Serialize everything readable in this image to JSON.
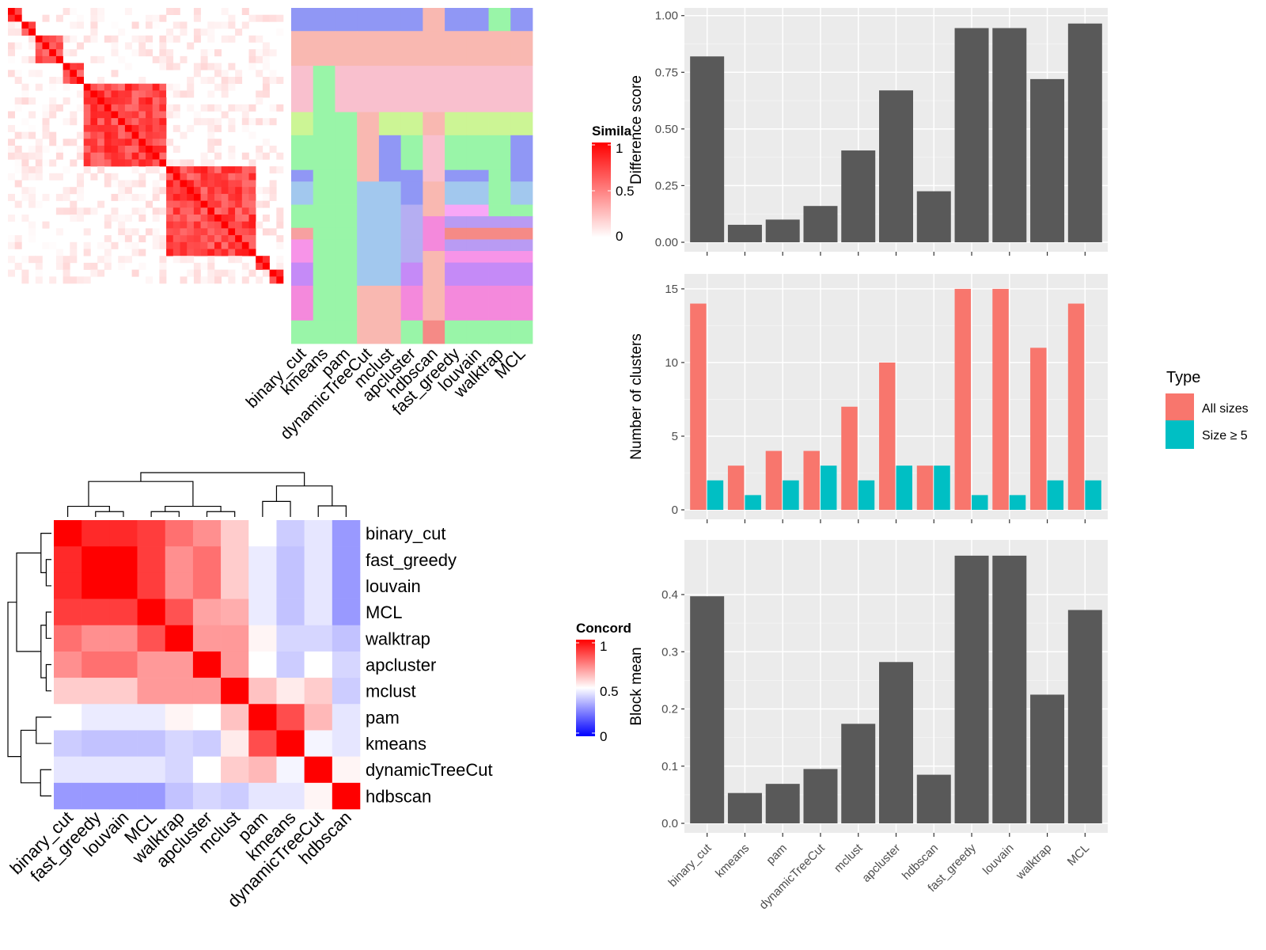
{
  "methods": [
    "binary_cut",
    "kmeans",
    "pam",
    "dynamicTreeCut",
    "mclust",
    "apcluster",
    "hdbscan",
    "fast_greedy",
    "louvain",
    "walktrap",
    "MCL"
  ],
  "similarity_legend": {
    "title": "Simila",
    "ticks": [
      "1",
      "0.5",
      "0"
    ],
    "colors": [
      "#ffffff",
      "#ff0000"
    ]
  },
  "concordance_legend": {
    "title": "Concord",
    "ticks": [
      "1",
      "0.5",
      "0"
    ],
    "colors": [
      "#0000ff",
      "#ffffff",
      "#ff0000"
    ]
  },
  "similarity_matrix": {
    "n": 40,
    "blocks": [
      [
        0,
        2
      ],
      [
        2,
        4
      ],
      [
        4,
        8
      ],
      [
        8,
        11
      ],
      [
        11,
        23
      ],
      [
        23,
        36
      ],
      [
        36,
        38
      ],
      [
        38,
        40
      ]
    ]
  },
  "cluster_panel": {
    "columns": [
      "binary_cut",
      "kmeans",
      "pam",
      "dynamicTreeCut",
      "mclust",
      "apcluster",
      "hdbscan",
      "fast_greedy",
      "louvain",
      "walktrap",
      "MCL"
    ],
    "palette": [
      "#9097F5",
      "#F9B8B1",
      "#F9C0CE",
      "#CCF595",
      "#99F5A8",
      "#A2C8EE",
      "#B5AEF2",
      "#F8A7F7",
      "#F58A86",
      "#C58AF7",
      "#F489DC",
      "#F794E8",
      "#B99BF3",
      "#F7A0A0",
      "#A7E89E"
    ],
    "rows": [
      {
        "h": 2,
        "c": [
          0,
          0,
          0,
          0,
          0,
          0,
          1,
          0,
          0,
          4,
          0
        ]
      },
      {
        "h": 3,
        "c": [
          1,
          1,
          1,
          1,
          1,
          1,
          1,
          1,
          1,
          1,
          1
        ]
      },
      {
        "h": 4,
        "c": [
          2,
          4,
          2,
          2,
          2,
          2,
          2,
          2,
          2,
          2,
          2
        ]
      },
      {
        "h": 2,
        "c": [
          3,
          4,
          4,
          1,
          3,
          3,
          1,
          3,
          3,
          3,
          3
        ]
      },
      {
        "h": 3,
        "c": [
          4,
          4,
          4,
          1,
          0,
          4,
          2,
          4,
          4,
          4,
          0
        ]
      },
      {
        "h": 1,
        "c": [
          0,
          4,
          4,
          1,
          0,
          0,
          2,
          0,
          0,
          4,
          0
        ]
      },
      {
        "h": 2,
        "c": [
          5,
          4,
          4,
          5,
          5,
          0,
          1,
          5,
          5,
          4,
          5
        ]
      },
      {
        "h": 1,
        "c": [
          4,
          4,
          4,
          5,
          5,
          6,
          1,
          7,
          7,
          4,
          4
        ]
      },
      {
        "h": 1,
        "c": [
          4,
          4,
          4,
          5,
          5,
          6,
          10,
          12,
          12,
          12,
          12
        ]
      },
      {
        "h": 1,
        "c": [
          13,
          4,
          4,
          5,
          5,
          6,
          10,
          8,
          8,
          8,
          8
        ]
      },
      {
        "h": 1,
        "c": [
          11,
          4,
          4,
          5,
          5,
          6,
          10,
          12,
          12,
          12,
          12
        ]
      },
      {
        "h": 1,
        "c": [
          11,
          4,
          4,
          5,
          5,
          6,
          1,
          11,
          11,
          11,
          11
        ]
      },
      {
        "h": 2,
        "c": [
          9,
          4,
          4,
          5,
          5,
          9,
          1,
          9,
          9,
          9,
          9
        ]
      },
      {
        "h": 3,
        "c": [
          10,
          4,
          4,
          1,
          1,
          10,
          1,
          10,
          10,
          10,
          10
        ]
      },
      {
        "h": 2,
        "c": [
          4,
          4,
          4,
          1,
          1,
          4,
          8,
          4,
          4,
          4,
          4
        ]
      }
    ]
  },
  "concordance": {
    "order": [
      "binary_cut",
      "fast_greedy",
      "louvain",
      "MCL",
      "walktrap",
      "apcluster",
      "mclust",
      "pam",
      "kmeans",
      "dynamicTreeCut",
      "hdbscan"
    ],
    "values": [
      [
        1.0,
        0.92,
        0.92,
        0.88,
        0.78,
        0.72,
        0.6,
        0.5,
        0.4,
        0.45,
        0.3
      ],
      [
        0.92,
        1.0,
        1.0,
        0.88,
        0.72,
        0.78,
        0.6,
        0.46,
        0.38,
        0.45,
        0.3
      ],
      [
        0.92,
        1.0,
        1.0,
        0.88,
        0.72,
        0.78,
        0.6,
        0.46,
        0.38,
        0.45,
        0.3
      ],
      [
        0.88,
        0.88,
        0.88,
        1.0,
        0.84,
        0.68,
        0.66,
        0.46,
        0.38,
        0.45,
        0.3
      ],
      [
        0.78,
        0.72,
        0.72,
        0.84,
        1.0,
        0.7,
        0.7,
        0.52,
        0.42,
        0.42,
        0.38
      ],
      [
        0.72,
        0.78,
        0.78,
        0.7,
        0.7,
        1.0,
        0.7,
        0.5,
        0.4,
        0.5,
        0.42
      ],
      [
        0.6,
        0.6,
        0.6,
        0.7,
        0.7,
        0.7,
        1.0,
        0.62,
        0.54,
        0.6,
        0.4
      ],
      [
        0.5,
        0.46,
        0.46,
        0.46,
        0.52,
        0.5,
        0.62,
        1.0,
        0.85,
        0.64,
        0.45
      ],
      [
        0.4,
        0.38,
        0.38,
        0.38,
        0.42,
        0.4,
        0.54,
        0.85,
        1.0,
        0.48,
        0.45
      ],
      [
        0.45,
        0.45,
        0.45,
        0.45,
        0.42,
        0.5,
        0.6,
        0.64,
        0.48,
        1.0,
        0.52
      ],
      [
        0.3,
        0.3,
        0.3,
        0.3,
        0.38,
        0.42,
        0.4,
        0.45,
        0.45,
        0.52,
        1.0
      ]
    ]
  },
  "chart_data": [
    {
      "type": "bar",
      "categories": [
        "binary_cut",
        "kmeans",
        "pam",
        "dynamicTreeCut",
        "mclust",
        "apcluster",
        "hdbscan",
        "fast_greedy",
        "louvain",
        "walktrap",
        "MCL"
      ],
      "values": [
        0.82,
        0.077,
        0.1,
        0.16,
        0.405,
        0.67,
        0.225,
        0.945,
        0.945,
        0.72,
        0.965
      ],
      "ylabel": "Difference score",
      "ylim": [
        0,
        1.02
      ],
      "yticks": [
        0,
        0.25,
        0.5,
        0.75,
        1.0
      ],
      "ytick_labels": [
        "0.00",
        "0.25",
        "0.50",
        "0.75",
        "1.00"
      ],
      "show_xlabels": false
    },
    {
      "type": "bar",
      "categories": [
        "binary_cut",
        "kmeans",
        "pam",
        "dynamicTreeCut",
        "mclust",
        "apcluster",
        "hdbscan",
        "fast_greedy",
        "louvain",
        "walktrap",
        "MCL"
      ],
      "series": [
        {
          "name": "All sizes",
          "values": [
            14,
            3,
            4,
            4,
            7,
            10,
            3,
            15,
            15,
            11,
            14
          ],
          "color": "#F8766D"
        },
        {
          "name": "Size ≥ 5",
          "values": [
            2,
            1,
            2,
            3,
            2,
            3,
            3,
            1,
            1,
            2,
            2
          ],
          "color": "#00BFC4"
        }
      ],
      "ylabel": "Number of clusters",
      "ylim": [
        0,
        15.8
      ],
      "yticks": [
        0,
        5,
        10,
        15
      ],
      "ytick_labels": [
        "0",
        "5",
        "10",
        "15"
      ],
      "legend_title": "Type",
      "legend": "right",
      "show_xlabels": false
    },
    {
      "type": "bar",
      "categories": [
        "binary_cut",
        "kmeans",
        "pam",
        "dynamicTreeCut",
        "mclust",
        "apcluster",
        "hdbscan",
        "fast_greedy",
        "louvain",
        "walktrap",
        "MCL"
      ],
      "values": [
        0.397,
        0.053,
        0.069,
        0.095,
        0.174,
        0.282,
        0.085,
        0.468,
        0.468,
        0.225,
        0.373
      ],
      "ylabel": "Block mean",
      "ylim": [
        0,
        0.49
      ],
      "yticks": [
        0,
        0.1,
        0.2,
        0.3,
        0.4
      ],
      "ytick_labels": [
        "0.0",
        "0.1",
        "0.2",
        "0.3",
        "0.4"
      ],
      "show_xlabels": true
    }
  ]
}
